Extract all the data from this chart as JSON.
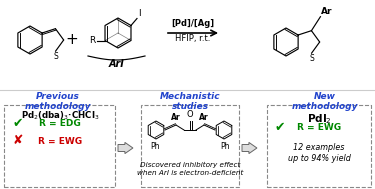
{
  "bg_color": "#ffffff",
  "blue_color": "#2244cc",
  "green_color": "#008800",
  "red_color": "#cc0000",
  "prev_title": "Previous\nmethodology",
  "mech_title": "Mechanistic\nstudies",
  "new_title": "New\nmethodology",
  "prev_catalyst": "Pd$_2$(dba)$_3$·CHCl$_3$",
  "new_catalyst": "PdI$_2$",
  "mech_caption": "Discovered inhibitory effect\nwhen ArI is electron-deficient",
  "new_details": "12 examples\nup to 94% yield",
  "reaction_conditions": "[Pd]/[Ag]",
  "reaction_solvent": "HFIP, r.t."
}
